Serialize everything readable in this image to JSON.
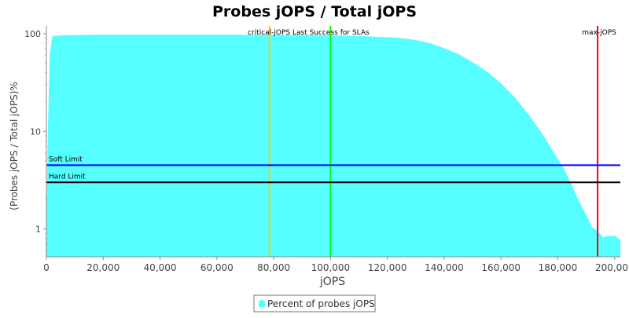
{
  "chart_data": {
    "type": "area",
    "title": "Probes jOPS / Total jOPS",
    "xlabel": "jOPS",
    "ylabel": "(Probes jOPS / Total jOPS)%",
    "x_scale": "linear",
    "y_scale": "log",
    "xlim": [
      0,
      202000
    ],
    "ylim": [
      0.52,
      120
    ],
    "x_ticks": [
      0,
      20000,
      40000,
      60000,
      80000,
      100000,
      120000,
      140000,
      160000,
      180000,
      200000
    ],
    "x_tick_labels": [
      "0",
      "20,000",
      "40,000",
      "60,000",
      "80,000",
      "100,000",
      "120,000",
      "140,000",
      "160,000",
      "180,000",
      "200,000"
    ],
    "y_ticks": [
      1,
      10,
      100
    ],
    "y_tick_labels": [
      "1",
      "10",
      "100"
    ],
    "grid": false,
    "legend_position": "bottom-center",
    "series": [
      {
        "name": "Percent of probes jOPS",
        "color": "#55ffff",
        "x": [
          0,
          500,
          1200,
          2000,
          3000,
          5000,
          10000,
          20000,
          40000,
          60000,
          80000,
          100000,
          110000,
          120000,
          125000,
          130000,
          135000,
          140000,
          145000,
          150000,
          155000,
          160000,
          165000,
          170000,
          175000,
          180000,
          182000,
          184000,
          186000,
          188000,
          190000,
          192000,
          194000,
          196000,
          198000,
          200000,
          202000
        ],
        "y": [
          1,
          10,
          60,
          93,
          95,
          96,
          97,
          97.5,
          97.5,
          97.5,
          97.5,
          96.5,
          94.5,
          92,
          90,
          86,
          80,
          71,
          62,
          51,
          41,
          31,
          22,
          14.5,
          9,
          5.2,
          4.2,
          3.2,
          2.4,
          1.8,
          1.4,
          1.05,
          0.95,
          0.83,
          0.85,
          0.85,
          0.78
        ]
      }
    ],
    "reference_lines": [
      {
        "orientation": "vertical",
        "x": 78500,
        "color": "#ffc800",
        "label": ""
      },
      {
        "orientation": "vertical",
        "x": 100000,
        "color": "#00ff00",
        "label": "critical-jOPS Last Success for SLAs"
      },
      {
        "orientation": "vertical",
        "x": 194000,
        "color": "#ff0000",
        "label": "max-jOPS"
      },
      {
        "orientation": "horizontal",
        "y": 4.5,
        "color": "#0000ff",
        "label": "Soft Limit"
      },
      {
        "orientation": "horizontal",
        "y": 3,
        "color": "#000000",
        "label": "Hard Limit"
      }
    ]
  }
}
